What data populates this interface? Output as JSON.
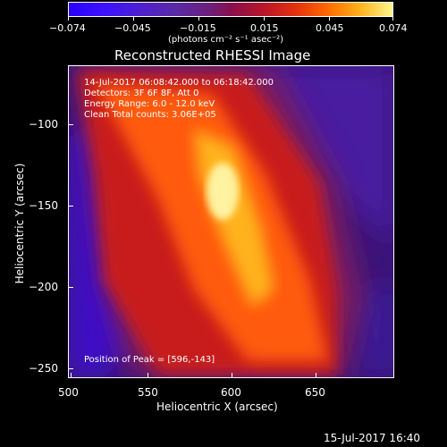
{
  "colorbar": {
    "tick_labels": [
      "−0.074",
      "−0.045",
      "−0.015",
      "0.015",
      "0.045",
      "0.074"
    ],
    "unit_label": "(photons cm⁻² s⁻¹ asec⁻²)"
  },
  "plot": {
    "title": "Reconstructed RHESSI Image",
    "info": [
      "14-Jul-2017 06:08:42.000 to 06:18:42.000",
      "Detectors: 3F 6F 8F, Att 0",
      "Energy Range: 6.0 - 12.0 keV",
      "Clean     Total counts: 3.06E+05"
    ],
    "peak_label": "Position of Peak = [596,-143]",
    "xlabel": "Heliocentric X (arcsec)",
    "ylabel": "Heliocentric Y (arcsec)",
    "x_ticks": [
      "500",
      "550",
      "600",
      "650"
    ],
    "y_ticks": [
      "−100",
      "−150",
      "−200",
      "−250"
    ],
    "xlim": [
      500,
      690
    ],
    "ylim": [
      -260,
      -72
    ],
    "colormap": [
      "#2a00ff",
      "#4a1ed8",
      "#6c1f78",
      "#8a0e4d",
      "#b7152a",
      "#e2300f",
      "#ff6a00",
      "#ffb31c",
      "#fff58f"
    ]
  },
  "footer": {
    "timestamp": "15-Jul-2017 16:40"
  }
}
